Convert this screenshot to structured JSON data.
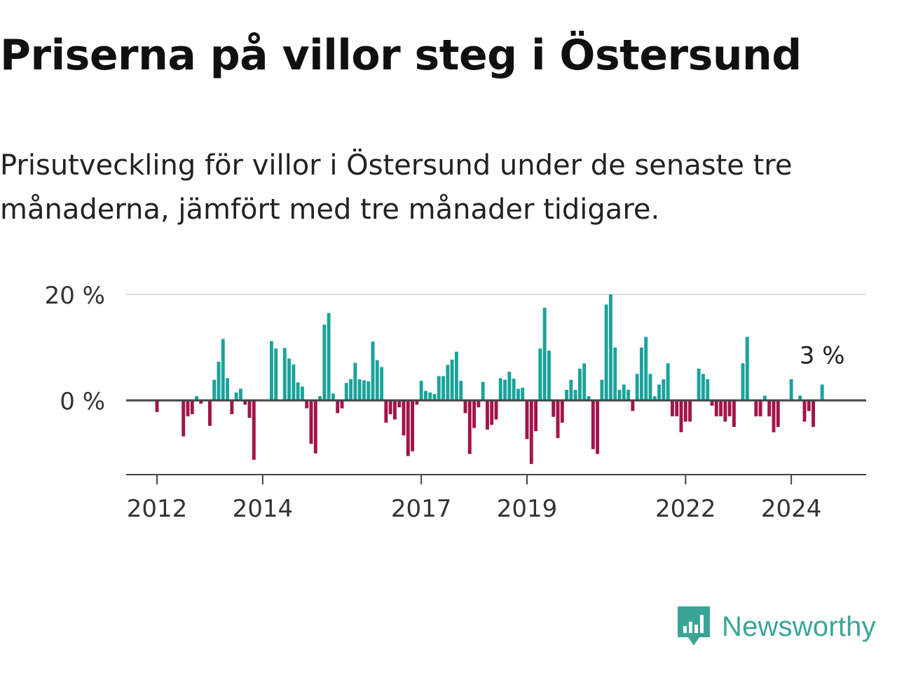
{
  "title": "Priserna på villor steg i Östersund",
  "subtitle": "Prisutveckling för villor i Östersund under de senaste tre månaderna, jämfört med tre månader tidigare.",
  "brand": {
    "name": "Newsworthy",
    "icon": "newsworthy-logo-icon",
    "color": "#3aa597"
  },
  "chart_data": {
    "type": "bar",
    "title": "",
    "xlabel": "",
    "ylabel": "",
    "ylim": [
      -14,
      20
    ],
    "xlim": [
      "2011-06",
      "2025-06"
    ],
    "yticks": [
      {
        "value": 0,
        "label": "0 %"
      },
      {
        "value": 20,
        "label": "20 %"
      }
    ],
    "xticks": [
      {
        "date": "2012-01",
        "label": "2012"
      },
      {
        "date": "2014-01",
        "label": "2014"
      },
      {
        "date": "2017-01",
        "label": "2017"
      },
      {
        "date": "2019-01",
        "label": "2019"
      },
      {
        "date": "2022-01",
        "label": "2022"
      },
      {
        "date": "2024-01",
        "label": "2024"
      }
    ],
    "grid": true,
    "colors": {
      "positive": "#1aa39a",
      "negative": "#a3134a"
    },
    "annotation": {
      "date": "2024-08",
      "text": "3 %"
    },
    "series": [
      {
        "values": [
          {
            "date": "2012-01",
            "value": -2.2
          },
          {
            "date": "2012-07",
            "value": -6.8
          },
          {
            "date": "2012-08",
            "value": -3.0
          },
          {
            "date": "2012-09",
            "value": -2.6
          },
          {
            "date": "2012-10",
            "value": 0.8
          },
          {
            "date": "2012-11",
            "value": -0.6
          },
          {
            "date": "2013-01",
            "value": -4.8
          },
          {
            "date": "2013-02",
            "value": 3.9
          },
          {
            "date": "2013-03",
            "value": 7.3
          },
          {
            "date": "2013-04",
            "value": 11.6
          },
          {
            "date": "2013-05",
            "value": 4.2
          },
          {
            "date": "2013-06",
            "value": -2.6
          },
          {
            "date": "2013-07",
            "value": 1.5
          },
          {
            "date": "2013-08",
            "value": 2.2
          },
          {
            "date": "2013-09",
            "value": -0.8
          },
          {
            "date": "2013-10",
            "value": -3.3
          },
          {
            "date": "2013-11",
            "value": -11.2
          },
          {
            "date": "2014-03",
            "value": 11.2
          },
          {
            "date": "2014-04",
            "value": 9.8
          },
          {
            "date": "2014-06",
            "value": 9.9
          },
          {
            "date": "2014-07",
            "value": 7.9
          },
          {
            "date": "2014-08",
            "value": 6.8
          },
          {
            "date": "2014-09",
            "value": 3.4
          },
          {
            "date": "2014-10",
            "value": 2.6
          },
          {
            "date": "2014-11",
            "value": -1.5
          },
          {
            "date": "2014-12",
            "value": -8.2
          },
          {
            "date": "2015-01",
            "value": -10.0
          },
          {
            "date": "2015-02",
            "value": 0.8
          },
          {
            "date": "2015-03",
            "value": 14.3
          },
          {
            "date": "2015-04",
            "value": 16.5
          },
          {
            "date": "2015-05",
            "value": 1.3
          },
          {
            "date": "2015-06",
            "value": -2.4
          },
          {
            "date": "2015-07",
            "value": -1.5
          },
          {
            "date": "2015-08",
            "value": 3.3
          },
          {
            "date": "2015-09",
            "value": 4.0
          },
          {
            "date": "2015-10",
            "value": 7.1
          },
          {
            "date": "2015-11",
            "value": 4.0
          },
          {
            "date": "2015-12",
            "value": 3.8
          },
          {
            "date": "2016-01",
            "value": 3.6
          },
          {
            "date": "2016-02",
            "value": 11.1
          },
          {
            "date": "2016-03",
            "value": 7.6
          },
          {
            "date": "2016-04",
            "value": 6.3
          },
          {
            "date": "2016-05",
            "value": -4.2
          },
          {
            "date": "2016-06",
            "value": -2.6
          },
          {
            "date": "2016-07",
            "value": -3.6
          },
          {
            "date": "2016-08",
            "value": -1.3
          },
          {
            "date": "2016-09",
            "value": -6.6
          },
          {
            "date": "2016-10",
            "value": -10.5
          },
          {
            "date": "2016-11",
            "value": -9.6
          },
          {
            "date": "2016-12",
            "value": -0.8
          },
          {
            "date": "2017-01",
            "value": 3.7
          },
          {
            "date": "2017-02",
            "value": 1.8
          },
          {
            "date": "2017-03",
            "value": 1.5
          },
          {
            "date": "2017-04",
            "value": 1.2
          },
          {
            "date": "2017-05",
            "value": 4.6
          },
          {
            "date": "2017-06",
            "value": 4.6
          },
          {
            "date": "2017-07",
            "value": 6.7
          },
          {
            "date": "2017-08",
            "value": 7.7
          },
          {
            "date": "2017-09",
            "value": 9.2
          },
          {
            "date": "2017-10",
            "value": 3.7
          },
          {
            "date": "2017-11",
            "value": -2.4
          },
          {
            "date": "2017-12",
            "value": -10.1
          },
          {
            "date": "2018-01",
            "value": -5.2
          },
          {
            "date": "2018-02",
            "value": -1.3
          },
          {
            "date": "2018-03",
            "value": 3.5
          },
          {
            "date": "2018-04",
            "value": -5.5
          },
          {
            "date": "2018-05",
            "value": -4.6
          },
          {
            "date": "2018-06",
            "value": -3.6
          },
          {
            "date": "2018-07",
            "value": 4.2
          },
          {
            "date": "2018-08",
            "value": 3.9
          },
          {
            "date": "2018-09",
            "value": 5.4
          },
          {
            "date": "2018-10",
            "value": 4.1
          },
          {
            "date": "2018-11",
            "value": 2.2
          },
          {
            "date": "2018-12",
            "value": 2.4
          },
          {
            "date": "2019-01",
            "value": -7.3
          },
          {
            "date": "2019-02",
            "value": -12.0
          },
          {
            "date": "2019-03",
            "value": -5.8
          },
          {
            "date": "2019-04",
            "value": 9.8
          },
          {
            "date": "2019-05",
            "value": 17.5
          },
          {
            "date": "2019-06",
            "value": 9.4
          },
          {
            "date": "2019-07",
            "value": -3.1
          },
          {
            "date": "2019-08",
            "value": -7.1
          },
          {
            "date": "2019-09",
            "value": -4.2
          },
          {
            "date": "2019-10",
            "value": 2.0
          },
          {
            "date": "2019-11",
            "value": 3.9
          },
          {
            "date": "2019-12",
            "value": 2.0
          },
          {
            "date": "2020-01",
            "value": 6.0
          },
          {
            "date": "2020-02",
            "value": 7.0
          },
          {
            "date": "2020-03",
            "value": 0.8
          },
          {
            "date": "2020-04",
            "value": -9.2
          },
          {
            "date": "2020-05",
            "value": -10.1
          },
          {
            "date": "2020-06",
            "value": 3.9
          },
          {
            "date": "2020-07",
            "value": 18.1
          },
          {
            "date": "2020-08",
            "value": 20.0
          },
          {
            "date": "2020-09",
            "value": 10.0
          },
          {
            "date": "2020-10",
            "value": 2.0
          },
          {
            "date": "2020-11",
            "value": 3.0
          },
          {
            "date": "2020-12",
            "value": 2.0
          },
          {
            "date": "2021-01",
            "value": -2.0
          },
          {
            "date": "2021-02",
            "value": 5.0
          },
          {
            "date": "2021-03",
            "value": 10.0
          },
          {
            "date": "2021-04",
            "value": 12.0
          },
          {
            "date": "2021-05",
            "value": 5.0
          },
          {
            "date": "2021-06",
            "value": 0.8
          },
          {
            "date": "2021-07",
            "value": 3.0
          },
          {
            "date": "2021-08",
            "value": 4.0
          },
          {
            "date": "2021-09",
            "value": 7.0
          },
          {
            "date": "2021-10",
            "value": -3.0
          },
          {
            "date": "2021-11",
            "value": -3.0
          },
          {
            "date": "2021-12",
            "value": -6.0
          },
          {
            "date": "2022-01",
            "value": -4.0
          },
          {
            "date": "2022-02",
            "value": -4.0
          },
          {
            "date": "2022-04",
            "value": 6.0
          },
          {
            "date": "2022-05",
            "value": 5.0
          },
          {
            "date": "2022-06",
            "value": 4.0
          },
          {
            "date": "2022-07",
            "value": -1.0
          },
          {
            "date": "2022-08",
            "value": -3.0
          },
          {
            "date": "2022-09",
            "value": -3.0
          },
          {
            "date": "2022-10",
            "value": -4.0
          },
          {
            "date": "2022-11",
            "value": -3.0
          },
          {
            "date": "2022-12",
            "value": -5.0
          },
          {
            "date": "2023-02",
            "value": 7.0
          },
          {
            "date": "2023-03",
            "value": 12.0
          },
          {
            "date": "2023-05",
            "value": -3.0
          },
          {
            "date": "2023-06",
            "value": -3.0
          },
          {
            "date": "2023-07",
            "value": 0.9
          },
          {
            "date": "2023-08",
            "value": -3.0
          },
          {
            "date": "2023-09",
            "value": -6.0
          },
          {
            "date": "2023-10",
            "value": -5.0
          },
          {
            "date": "2024-01",
            "value": 4.0
          },
          {
            "date": "2024-03",
            "value": 0.9
          },
          {
            "date": "2024-04",
            "value": -4.0
          },
          {
            "date": "2024-05",
            "value": -2.0
          },
          {
            "date": "2024-06",
            "value": -5.0
          },
          {
            "date": "2024-08",
            "value": 3.0
          }
        ]
      }
    ]
  }
}
